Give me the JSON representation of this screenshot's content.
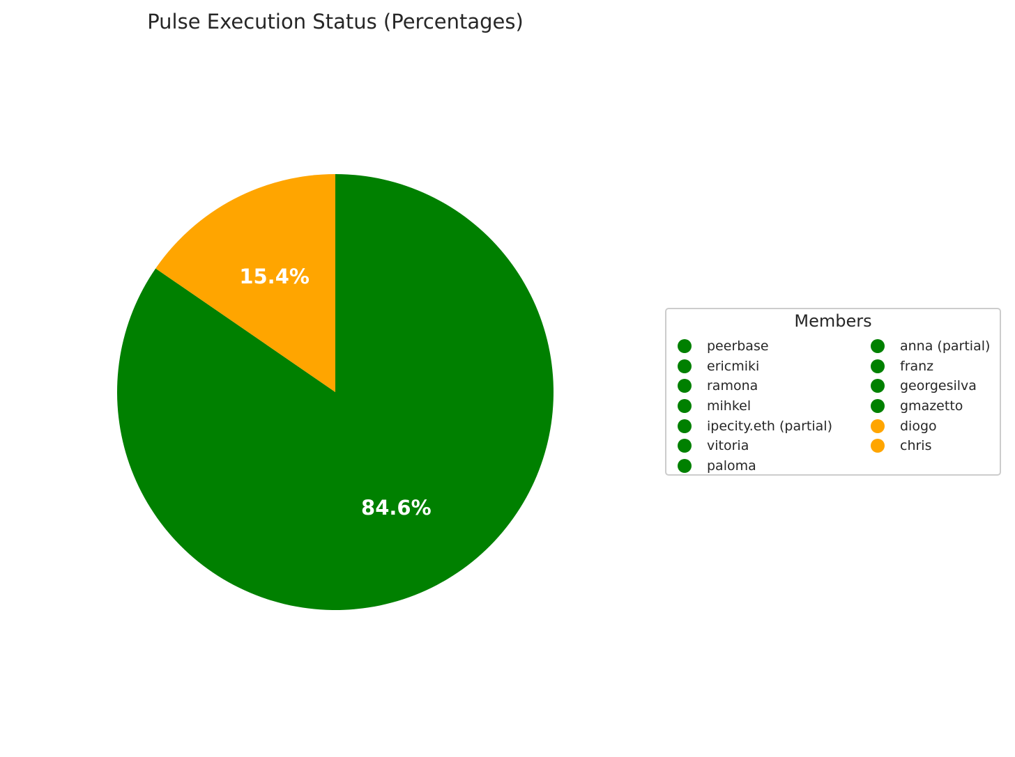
{
  "chart_data": {
    "type": "pie",
    "title": "Pulse Execution Status (Percentages)",
    "slices": [
      {
        "value": 84.6,
        "label": "84.6%",
        "color": "#008000"
      },
      {
        "value": 15.4,
        "label": "15.4%",
        "color": "#FFA500"
      }
    ],
    "start_angle_deg": 90,
    "direction": "clockwise",
    "legend": {
      "title": "Members",
      "placement": "center-right",
      "columns": [
        [
          {
            "label": "peerbase",
            "color": "#008000"
          },
          {
            "label": "ericmiki",
            "color": "#008000"
          },
          {
            "label": "ramona",
            "color": "#008000"
          },
          {
            "label": "mihkel",
            "color": "#008000"
          },
          {
            "label": "ipecity.eth (partial)",
            "color": "#008000"
          },
          {
            "label": "vitoria",
            "color": "#008000"
          },
          {
            "label": "paloma",
            "color": "#008000"
          }
        ],
        [
          {
            "label": "anna (partial)",
            "color": "#008000"
          },
          {
            "label": "franz",
            "color": "#008000"
          },
          {
            "label": "georgesilva",
            "color": "#008000"
          },
          {
            "label": "gmazetto",
            "color": "#008000"
          },
          {
            "label": "diogo",
            "color": "#FFA500"
          },
          {
            "label": "chris",
            "color": "#FFA500"
          }
        ]
      ]
    }
  }
}
